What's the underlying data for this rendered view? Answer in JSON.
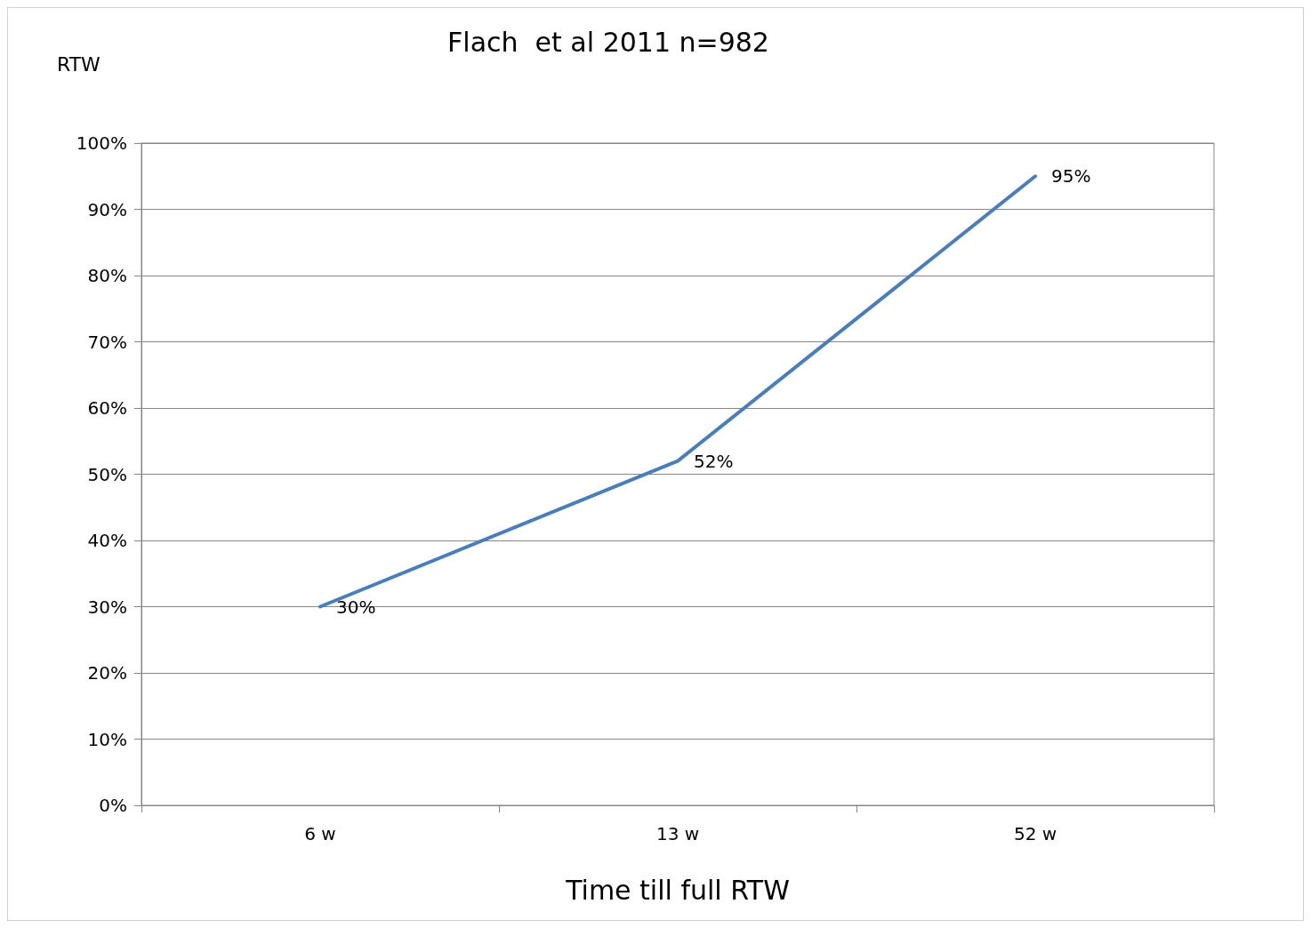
{
  "chart_data": {
    "type": "line",
    "title": "Flach  et al 2011 n=982",
    "xlabel": "Time till full RTW",
    "ylabel": "RTW",
    "categories": [
      "6 w",
      "13 w",
      "52 w"
    ],
    "series": [
      {
        "color": "#4a7ebb",
        "values": [
          30,
          52,
          95
        ],
        "value_labels": [
          "30%",
          "52%",
          "95%"
        ]
      }
    ],
    "ylim": [
      0,
      100
    ],
    "yticks": [
      {
        "value": 0,
        "label": "0%"
      },
      {
        "value": 10,
        "label": "10%"
      },
      {
        "value": 20,
        "label": "20%"
      },
      {
        "value": 30,
        "label": "30%"
      },
      {
        "value": 40,
        "label": "40%"
      },
      {
        "value": 50,
        "label": "50%"
      },
      {
        "value": 60,
        "label": "60%"
      },
      {
        "value": 70,
        "label": "70%"
      },
      {
        "value": 80,
        "label": "80%"
      },
      {
        "value": 90,
        "label": "90%"
      },
      {
        "value": 100,
        "label": "100%"
      }
    ],
    "grid": "y",
    "marker": "none",
    "line_style": "solid"
  }
}
